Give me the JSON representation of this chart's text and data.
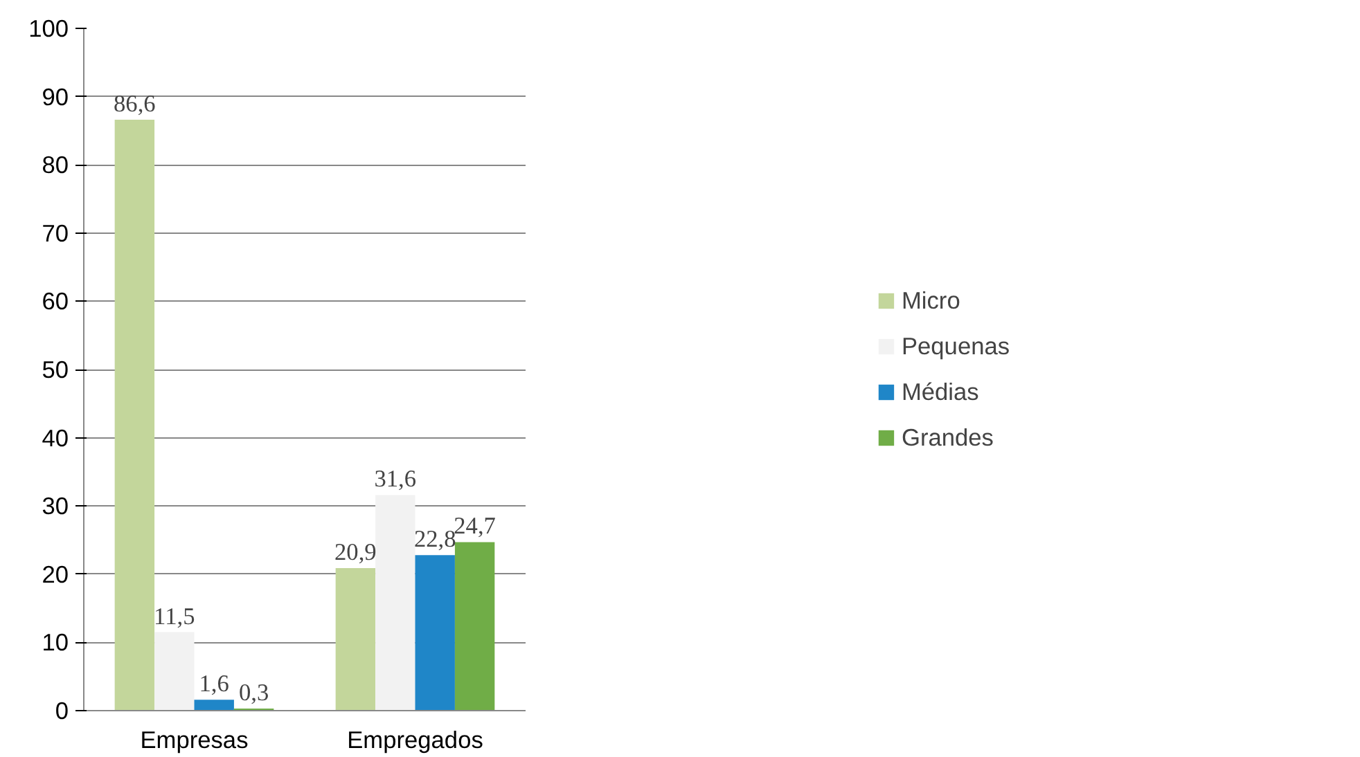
{
  "chart_data": {
    "type": "bar",
    "categories": [
      "Empresas",
      "Empregados"
    ],
    "series": [
      {
        "name": "Micro",
        "color": "#c3d69b",
        "values": [
          86.6,
          20.9
        ],
        "value_labels": [
          "86,6",
          "20,9"
        ]
      },
      {
        "name": "Pequenas",
        "color": "#f2f2f2",
        "values": [
          11.5,
          31.6
        ],
        "value_labels": [
          "11,5",
          "31,6"
        ]
      },
      {
        "name": "Médias",
        "color": "#1f86c8",
        "values": [
          1.6,
          22.8
        ],
        "value_labels": [
          "1,6",
          "22,8"
        ]
      },
      {
        "name": "Grandes",
        "color": "#70ad47",
        "values": [
          0.3,
          24.7
        ],
        "value_labels": [
          "0,3",
          "24,7"
        ]
      }
    ],
    "ylim": [
      0,
      100
    ],
    "yticks": [
      0,
      10,
      20,
      30,
      40,
      50,
      60,
      70,
      80,
      90,
      100
    ],
    "grid": "y",
    "legend": "right"
  }
}
